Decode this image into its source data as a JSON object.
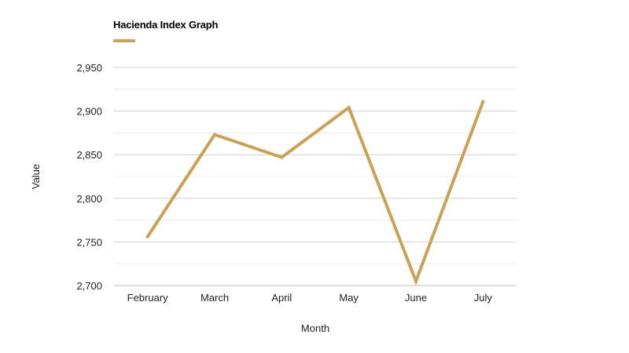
{
  "colors": {
    "series": "#c9a257",
    "grid_major": "#cfcfcf",
    "grid_minor": "#ececec",
    "text": "#222222"
  },
  "chart_data": {
    "type": "line",
    "categories": [
      "February",
      "March",
      "April",
      "May",
      "June",
      "July"
    ],
    "series": [
      {
        "name": "Hacienda Index Graph",
        "values": [
          2756,
          2873,
          2847,
          2904,
          2705,
          2911
        ]
      }
    ],
    "xlabel": "Month",
    "ylabel": "Value",
    "ylim": [
      2700,
      2950
    ],
    "yticks": [
      "2,700",
      "2,750",
      "2,800",
      "2,850",
      "2,900",
      "2,950"
    ],
    "grid": true,
    "legend_position": "top-left"
  }
}
